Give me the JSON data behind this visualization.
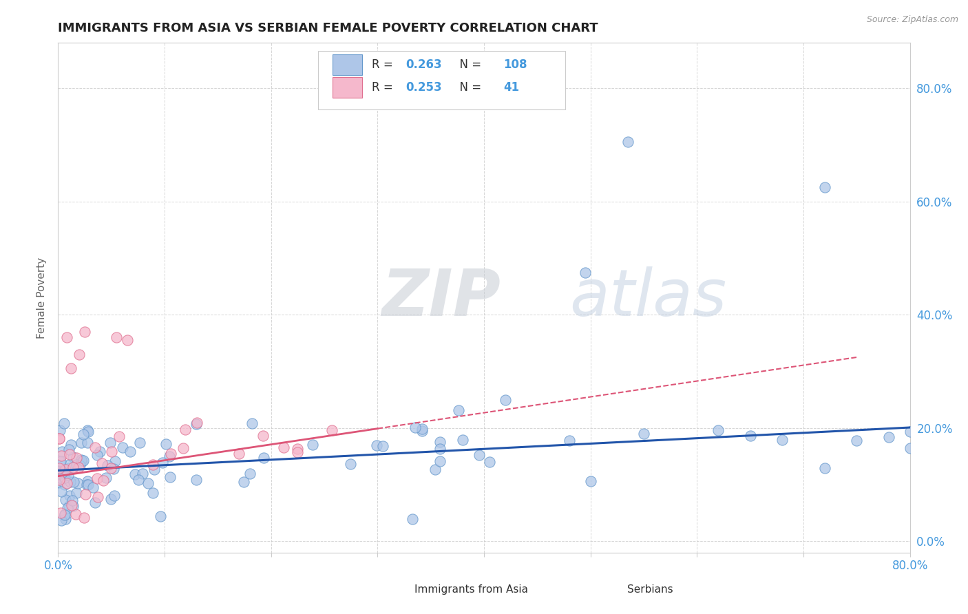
{
  "title": "IMMIGRANTS FROM ASIA VS SERBIAN FEMALE POVERTY CORRELATION CHART",
  "source_text": "Source: ZipAtlas.com",
  "ylabel": "Female Poverty",
  "xlim": [
    0.0,
    0.8
  ],
  "ylim": [
    -0.02,
    0.88
  ],
  "ytick_vals_right": [
    0.0,
    0.2,
    0.4,
    0.6,
    0.8
  ],
  "ytick_labels_right": [
    "0.0%",
    "20.0%",
    "40.0%",
    "60.0%",
    "80.0%"
  ],
  "legend_R_blue": "0.263",
  "legend_N_blue": "108",
  "legend_R_pink": "0.253",
  "legend_N_pink": "41",
  "blue_scatter_color": "#aec6e8",
  "blue_edge_color": "#6699cc",
  "pink_scatter_color": "#f5b8cc",
  "pink_edge_color": "#e07090",
  "blue_line_color": "#2255aa",
  "pink_line_color": "#dd5577",
  "watermark_color": "#d5dde8",
  "grid_color": "#cccccc",
  "background_color": "#ffffff",
  "title_color": "#222222",
  "source_color": "#999999",
  "tick_color": "#4499dd",
  "ylabel_color": "#666666",
  "blue_intercept": 0.125,
  "blue_slope_full": 0.095,
  "pink_intercept": 0.115,
  "pink_slope_full": 0.28
}
